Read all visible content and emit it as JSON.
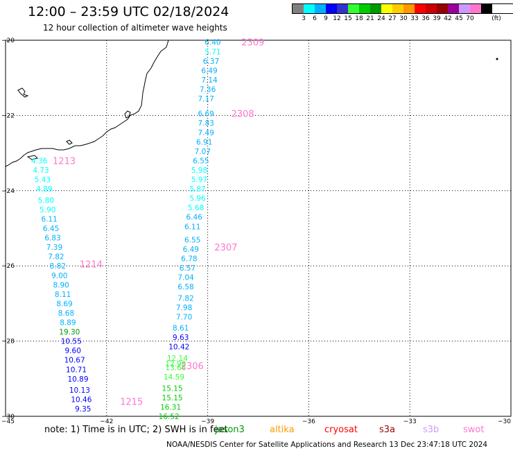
{
  "header": {
    "title": "12:00 – 23:59 UTC 02/18/2024",
    "subtitle": "12 hour collection of altimeter wave heights"
  },
  "legend": {
    "unit": "(ft)",
    "colors": [
      "#808080",
      "#00ffff",
      "#00b0ff",
      "#0000ff",
      "#3333cc",
      "#33ff33",
      "#00cc00",
      "#009900",
      "#ffff00",
      "#ffcc00",
      "#ff9900",
      "#ff0000",
      "#cc0000",
      "#990000",
      "#990099",
      "#cc99ff",
      "#ff77cc",
      "#000000"
    ],
    "labels": [
      "3",
      "6",
      "9",
      "12",
      "15",
      "18",
      "21",
      "24",
      "27",
      "30",
      "33",
      "36",
      "39",
      "42",
      "45",
      "70"
    ]
  },
  "axes": {
    "lon_labels": [
      "−45",
      "−42",
      "−39",
      "−36",
      "−33",
      "−30"
    ],
    "lat_labels": [
      "−20",
      "−22",
      "−24",
      "−26",
      "−28",
      "−30"
    ]
  },
  "passes": [
    {
      "name": "2309",
      "lat": -20.05,
      "lon": -38.0
    },
    {
      "name": "2308",
      "lat": -21.95,
      "lon": -38.3
    },
    {
      "name": "2307",
      "lat": -25.5,
      "lon": -38.8
    },
    {
      "name": "2306",
      "lat": -28.65,
      "lon": -39.8
    },
    {
      "name": "1213",
      "lat": -23.2,
      "lon": -43.6
    },
    {
      "name": "1214",
      "lat": -25.95,
      "lon": -42.8
    },
    {
      "name": "1215",
      "lat": -29.6,
      "lon": -41.6
    }
  ],
  "chart_data": {
    "type": "scatter",
    "x_axis": "longitude",
    "y_axis": "latitude",
    "xlim": [
      -45,
      -30
    ],
    "ylim": [
      -30,
      -20
    ],
    "points": [
      {
        "lon": -38.85,
        "lat": -20.05,
        "v": "6.40",
        "c": "#00b0ff"
      },
      {
        "lon": -38.85,
        "lat": -20.3,
        "v": "5.71",
        "c": "#00ffff"
      },
      {
        "lon": -38.9,
        "lat": -20.55,
        "v": "6.37",
        "c": "#00b0ff"
      },
      {
        "lon": -38.95,
        "lat": -20.8,
        "v": "6.49",
        "c": "#00b0ff"
      },
      {
        "lon": -38.95,
        "lat": -21.05,
        "v": "7.14",
        "c": "#00b0ff"
      },
      {
        "lon": -39.0,
        "lat": -21.3,
        "v": "7.36",
        "c": "#00b0ff"
      },
      {
        "lon": -39.05,
        "lat": -21.55,
        "v": "7.17",
        "c": "#00b0ff"
      },
      {
        "lon": -39.05,
        "lat": -21.95,
        "v": "6.69",
        "c": "#00b0ff"
      },
      {
        "lon": -39.05,
        "lat": -22.2,
        "v": "7.83",
        "c": "#00b0ff"
      },
      {
        "lon": -39.05,
        "lat": -22.45,
        "v": "7.49",
        "c": "#00b0ff"
      },
      {
        "lon": -39.1,
        "lat": -22.7,
        "v": "6.91",
        "c": "#00b0ff"
      },
      {
        "lon": -39.15,
        "lat": -22.95,
        "v": "7.07",
        "c": "#00b0ff"
      },
      {
        "lon": -39.2,
        "lat": -23.2,
        "v": "6.55",
        "c": "#00b0ff"
      },
      {
        "lon": -39.25,
        "lat": -23.45,
        "v": "5.98",
        "c": "#00ffff"
      },
      {
        "lon": -39.25,
        "lat": -23.7,
        "v": "5.97",
        "c": "#00ffff"
      },
      {
        "lon": -39.3,
        "lat": -23.95,
        "v": "5.87",
        "c": "#00ffff"
      },
      {
        "lon": -39.3,
        "lat": -24.2,
        "v": "5.96",
        "c": "#00ffff"
      },
      {
        "lon": -39.35,
        "lat": -24.45,
        "v": "5.68",
        "c": "#00ffff"
      },
      {
        "lon": -39.4,
        "lat": -24.7,
        "v": "6.46",
        "c": "#00b0ff"
      },
      {
        "lon": -39.45,
        "lat": -24.95,
        "v": "6.11",
        "c": "#00b0ff"
      },
      {
        "lon": -39.45,
        "lat": -25.3,
        "v": "6.55",
        "c": "#00b0ff"
      },
      {
        "lon": -39.5,
        "lat": -25.55,
        "v": "6.49",
        "c": "#00b0ff"
      },
      {
        "lon": -39.55,
        "lat": -25.8,
        "v": "6.78",
        "c": "#00b0ff"
      },
      {
        "lon": -39.6,
        "lat": -26.05,
        "v": "6.57",
        "c": "#00b0ff"
      },
      {
        "lon": -39.65,
        "lat": -26.3,
        "v": "7.04",
        "c": "#00b0ff"
      },
      {
        "lon": -39.65,
        "lat": -26.55,
        "v": "6.58",
        "c": "#00b0ff"
      },
      {
        "lon": -39.65,
        "lat": -26.85,
        "v": "7.82",
        "c": "#00b0ff"
      },
      {
        "lon": -39.7,
        "lat": -27.1,
        "v": "7.98",
        "c": "#00b0ff"
      },
      {
        "lon": -39.7,
        "lat": -27.35,
        "v": "7.70",
        "c": "#00b0ff"
      },
      {
        "lon": -39.8,
        "lat": -27.65,
        "v": "8.61",
        "c": "#00b0ff"
      },
      {
        "lon": -39.8,
        "lat": -27.9,
        "v": "9.63",
        "c": "#0000ff"
      },
      {
        "lon": -39.85,
        "lat": -28.15,
        "v": "10.42",
        "c": "#0000ff"
      },
      {
        "lon": -39.9,
        "lat": -28.45,
        "v": "12.14",
        "c": "#33ff33"
      },
      {
        "lon": -39.95,
        "lat": -28.6,
        "v": "12.98",
        "c": "#33ff33"
      },
      {
        "lon": -39.95,
        "lat": -28.7,
        "v": "13.66",
        "c": "#33ff33"
      },
      {
        "lon": -40.0,
        "lat": -28.95,
        "v": "14.59",
        "c": "#33ff33"
      },
      {
        "lon": -40.05,
        "lat": -29.25,
        "v": "15.15",
        "c": "#00cc00"
      },
      {
        "lon": -40.05,
        "lat": -29.5,
        "v": "15.15",
        "c": "#00cc00"
      },
      {
        "lon": -40.1,
        "lat": -29.75,
        "v": "16.31",
        "c": "#00cc00"
      },
      {
        "lon": -40.15,
        "lat": -30.0,
        "v": "16.52",
        "c": "#00cc00"
      },
      {
        "lon": -44.0,
        "lat": -23.2,
        "v": "4.36",
        "c": "#00ffff"
      },
      {
        "lon": -43.95,
        "lat": -23.45,
        "v": "4.73",
        "c": "#00ffff"
      },
      {
        "lon": -43.9,
        "lat": -23.7,
        "v": "5.43",
        "c": "#00ffff"
      },
      {
        "lon": -43.85,
        "lat": -23.95,
        "v": "4.89",
        "c": "#00ffff"
      },
      {
        "lon": -43.8,
        "lat": -24.25,
        "v": "5.80",
        "c": "#00ffff"
      },
      {
        "lon": -43.75,
        "lat": -24.5,
        "v": "5.90",
        "c": "#00ffff"
      },
      {
        "lon": -43.7,
        "lat": -24.75,
        "v": "6.11",
        "c": "#00b0ff"
      },
      {
        "lon": -43.65,
        "lat": -25.0,
        "v": "6.45",
        "c": "#00b0ff"
      },
      {
        "lon": -43.6,
        "lat": -25.25,
        "v": "6.83",
        "c": "#00b0ff"
      },
      {
        "lon": -43.55,
        "lat": -25.5,
        "v": "7.39",
        "c": "#00b0ff"
      },
      {
        "lon": -43.5,
        "lat": -25.75,
        "v": "7.82",
        "c": "#00b0ff"
      },
      {
        "lon": -43.45,
        "lat": -26.0,
        "v": "8.82",
        "c": "#00b0ff"
      },
      {
        "lon": -43.4,
        "lat": -26.25,
        "v": "9.00",
        "c": "#00b0ff"
      },
      {
        "lon": -43.35,
        "lat": -26.5,
        "v": "8.90",
        "c": "#00b0ff"
      },
      {
        "lon": -43.3,
        "lat": -26.75,
        "v": "8.11",
        "c": "#00b0ff"
      },
      {
        "lon": -43.25,
        "lat": -27.0,
        "v": "8.69",
        "c": "#00b0ff"
      },
      {
        "lon": -43.2,
        "lat": -27.25,
        "v": "8.68",
        "c": "#00b0ff"
      },
      {
        "lon": -43.15,
        "lat": -27.5,
        "v": "8.89",
        "c": "#00b0ff"
      },
      {
        "lon": -43.1,
        "lat": -27.75,
        "v": "19.30",
        "c": "#009900"
      },
      {
        "lon": -43.05,
        "lat": -28.0,
        "v": "10.55",
        "c": "#0000ff"
      },
      {
        "lon": -43.0,
        "lat": -28.25,
        "v": "9.60",
        "c": "#0000ff"
      },
      {
        "lon": -42.95,
        "lat": -28.5,
        "v": "10.67",
        "c": "#0000ff"
      },
      {
        "lon": -42.9,
        "lat": -28.75,
        "v": "10.71",
        "c": "#0000ff"
      },
      {
        "lon": -42.85,
        "lat": -29.0,
        "v": "10.89",
        "c": "#0000ff"
      },
      {
        "lon": -42.8,
        "lat": -29.3,
        "v": "10.13",
        "c": "#0000ff"
      },
      {
        "lon": -42.75,
        "lat": -29.55,
        "v": "10.46",
        "c": "#0000ff"
      },
      {
        "lon": -42.7,
        "lat": -29.8,
        "v": "9.35",
        "c": "#0000ff"
      }
    ]
  },
  "footer": {
    "note": "note:  1) Time is in UTC;  2) SWH is in feet",
    "satellites": [
      {
        "name": "jason3",
        "color": "#009900"
      },
      {
        "name": "altika",
        "color": "#ff9900"
      },
      {
        "name": "cryosat",
        "color": "#ff0000"
      },
      {
        "name": "s3a",
        "color": "#990000"
      },
      {
        "name": "s3b",
        "color": "#cc99ff"
      },
      {
        "name": "swot",
        "color": "#ff77cc"
      }
    ],
    "credit": "NOAA/NESDIS Center for Satellite Applications and Research    13 Dec 23:47:18 UTC 2024"
  }
}
